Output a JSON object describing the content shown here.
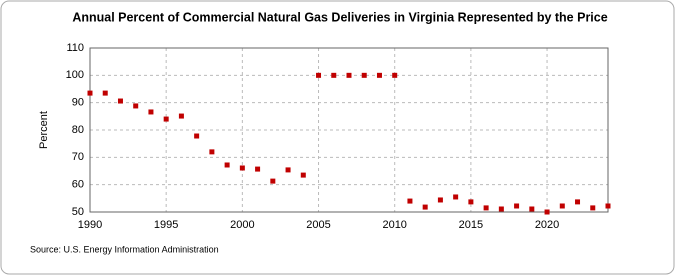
{
  "chart_data": {
    "type": "scatter",
    "title": "Annual Percent of Commercial Natural Gas Deliveries in Virginia Represented by the Price",
    "ylabel": "Percent",
    "source": "Source: U.S. Energy Information Administration",
    "x": [
      1990,
      1991,
      1992,
      1993,
      1994,
      1995,
      1996,
      1997,
      1998,
      1999,
      2000,
      2001,
      2002,
      2003,
      2004,
      2005,
      2006,
      2007,
      2008,
      2009,
      2010,
      2011,
      2012,
      2013,
      2014,
      2015,
      2016,
      2017,
      2018,
      2019,
      2020,
      2021,
      2022,
      2023,
      2024
    ],
    "series": [
      {
        "name": "Percent",
        "color": "#c00000",
        "values": [
          93.5,
          93.5,
          90.6,
          88.8,
          86.6,
          84,
          85.1,
          77.8,
          72,
          67.2,
          66.1,
          65.7,
          61.3,
          65.4,
          63.5,
          100,
          100,
          100,
          100,
          100,
          100,
          54,
          51.8,
          54.4,
          55.5,
          53.7,
          51.5,
          51.1,
          52.2,
          51.1,
          50,
          52.2,
          53.7,
          51.5,
          52.2
        ]
      }
    ],
    "xlim": [
      1990,
      2024
    ],
    "xticks": [
      1990,
      1995,
      2000,
      2005,
      2010,
      2015,
      2020
    ],
    "ylim": [
      50,
      110
    ],
    "yticks": [
      50,
      60,
      70,
      80,
      90,
      100,
      110
    ],
    "grid": true
  }
}
